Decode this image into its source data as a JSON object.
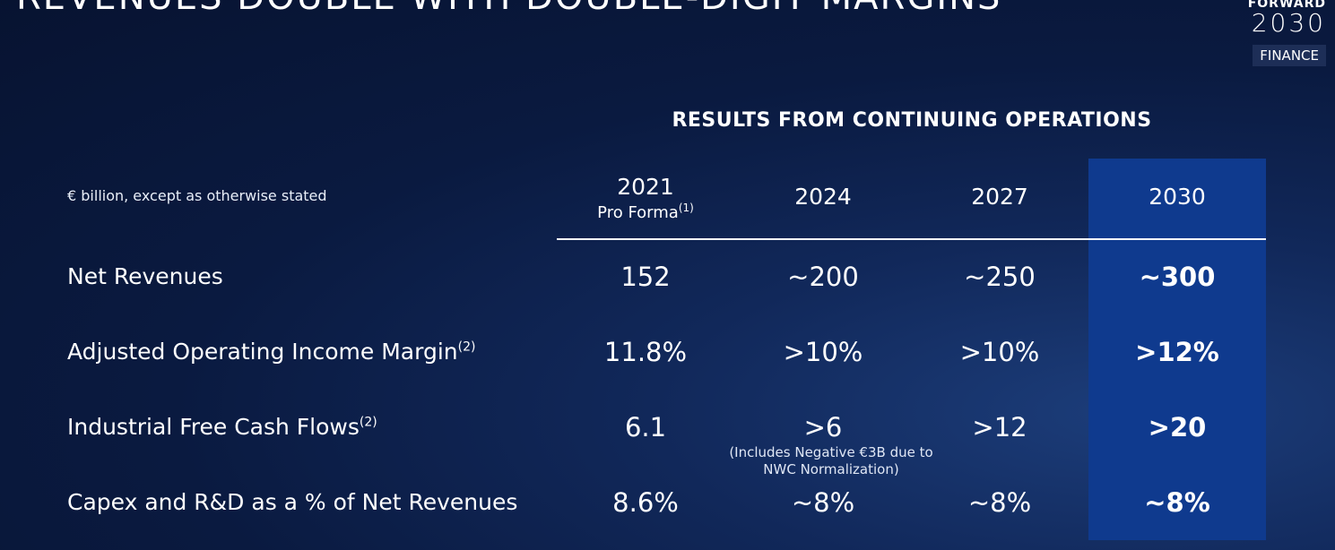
{
  "slide": {
    "title": "REVENUES DOUBLE WITH DOUBLE-DIGIT MARGINS",
    "logo": {
      "top": "FORWARD",
      "year": "2030",
      "badge": "FINANCE"
    },
    "section_title": "RESULTS FROM CONTINUING OPERATIONS",
    "unit_note": "€ billion, except as otherwise stated",
    "highlight_color": "#0f3a8e"
  },
  "table": {
    "columns": [
      {
        "year": "2021",
        "sub": "Pro Forma",
        "sup": "(1)"
      },
      {
        "year": "2024",
        "sub": "",
        "sup": ""
      },
      {
        "year": "2027",
        "sub": "",
        "sup": ""
      },
      {
        "year": "2030",
        "sub": "",
        "sup": ""
      }
    ],
    "rows": [
      {
        "label": "Net Revenues",
        "sup": "",
        "values": [
          "152",
          "~200",
          "~250",
          "~300"
        ]
      },
      {
        "label": "Adjusted Operating Income Margin",
        "sup": "(2)",
        "values": [
          "11.8%",
          ">10%",
          ">10%",
          ">12%"
        ]
      },
      {
        "label": "Industrial Free Cash Flows",
        "sup": "(2)",
        "values": [
          "6.1",
          ">6",
          ">12",
          ">20"
        ]
      },
      {
        "label": "Capex and R&D as a % of Net Revenues",
        "sup": "",
        "values": [
          "8.6%",
          "~8%",
          "~8%",
          "~8%"
        ]
      }
    ],
    "note_ifcf_2024": "(Includes Negative €3B due to NWC Normalization)"
  }
}
